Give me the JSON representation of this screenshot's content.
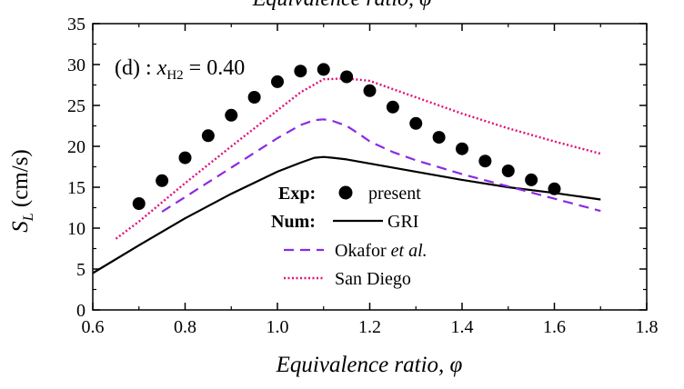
{
  "chart_data": {
    "type": "line",
    "top_title": "Equivalence ratio, φ",
    "xlabel": "Equivalence ratio, φ",
    "ylabel": "S",
    "ylabel_sub": "L",
    "ylabel_unit": " (cm/s)",
    "xlim": [
      0.6,
      1.8
    ],
    "ylim": [
      0,
      35
    ],
    "xticks": [
      0.6,
      0.8,
      1.0,
      1.2,
      1.4,
      1.6,
      1.8
    ],
    "xtick_labels": [
      "0.6",
      "0.8",
      "1.0",
      "1.2",
      "1.4",
      "1.6",
      "1.8"
    ],
    "yticks": [
      0,
      5,
      10,
      15,
      20,
      25,
      30,
      35
    ],
    "ytick_labels": [
      "0",
      "5",
      "10",
      "15",
      "20",
      "25",
      "30",
      "35"
    ],
    "annotation": {
      "prefix": "(d) : ",
      "var": "x",
      "sub": "H2",
      "suffix": " = 0.40"
    },
    "legend": {
      "placement": "bottom-center",
      "exp_label": "Exp:",
      "num_label": "Num:"
    },
    "series": [
      {
        "name": "present",
        "kind": "scatter",
        "color": "#000000",
        "x": [
          0.7,
          0.75,
          0.8,
          0.85,
          0.9,
          0.95,
          1.0,
          1.05,
          1.1,
          1.15,
          1.2,
          1.25,
          1.3,
          1.35,
          1.4,
          1.45,
          1.5,
          1.55,
          1.6
        ],
        "y": [
          13.0,
          15.8,
          18.6,
          21.3,
          23.8,
          26.0,
          27.9,
          29.2,
          29.4,
          28.5,
          26.8,
          24.8,
          22.8,
          21.1,
          19.7,
          18.2,
          17.0,
          15.9,
          14.8
        ]
      },
      {
        "name": "GRI",
        "kind": "line",
        "color": "#000000",
        "dash": "solid",
        "x": [
          0.6,
          0.7,
          0.8,
          0.9,
          1.0,
          1.05,
          1.08,
          1.1,
          1.12,
          1.15,
          1.2,
          1.3,
          1.4,
          1.5,
          1.6,
          1.7
        ],
        "y": [
          4.5,
          7.9,
          11.2,
          14.2,
          16.9,
          18.0,
          18.6,
          18.7,
          18.6,
          18.4,
          17.9,
          16.9,
          15.9,
          15.0,
          14.3,
          13.5
        ]
      },
      {
        "name": "Okafor et al.",
        "name_plain": "Okafor ",
        "name_italic": "et al.",
        "kind": "line",
        "color": "#8a2be2",
        "dash": "dashed",
        "x": [
          0.75,
          0.8,
          0.85,
          0.9,
          0.95,
          1.0,
          1.05,
          1.08,
          1.1,
          1.12,
          1.15,
          1.18,
          1.2,
          1.25,
          1.3,
          1.4,
          1.5,
          1.6,
          1.7
        ],
        "y": [
          12.0,
          13.8,
          15.6,
          17.4,
          19.2,
          21.0,
          22.6,
          23.2,
          23.3,
          23.1,
          22.5,
          21.4,
          20.6,
          19.3,
          18.3,
          16.6,
          15.1,
          13.6,
          12.1
        ]
      },
      {
        "name": "San Diego",
        "kind": "line",
        "color": "#e0107a",
        "dash": "dotted",
        "x": [
          0.65,
          0.7,
          0.8,
          0.9,
          1.0,
          1.05,
          1.1,
          1.15,
          1.2,
          1.3,
          1.4,
          1.5,
          1.6,
          1.7
        ],
        "y": [
          8.7,
          10.8,
          15.5,
          20.0,
          24.4,
          26.6,
          28.2,
          28.3,
          28.0,
          26.0,
          24.0,
          22.2,
          20.6,
          19.1
        ]
      }
    ]
  }
}
